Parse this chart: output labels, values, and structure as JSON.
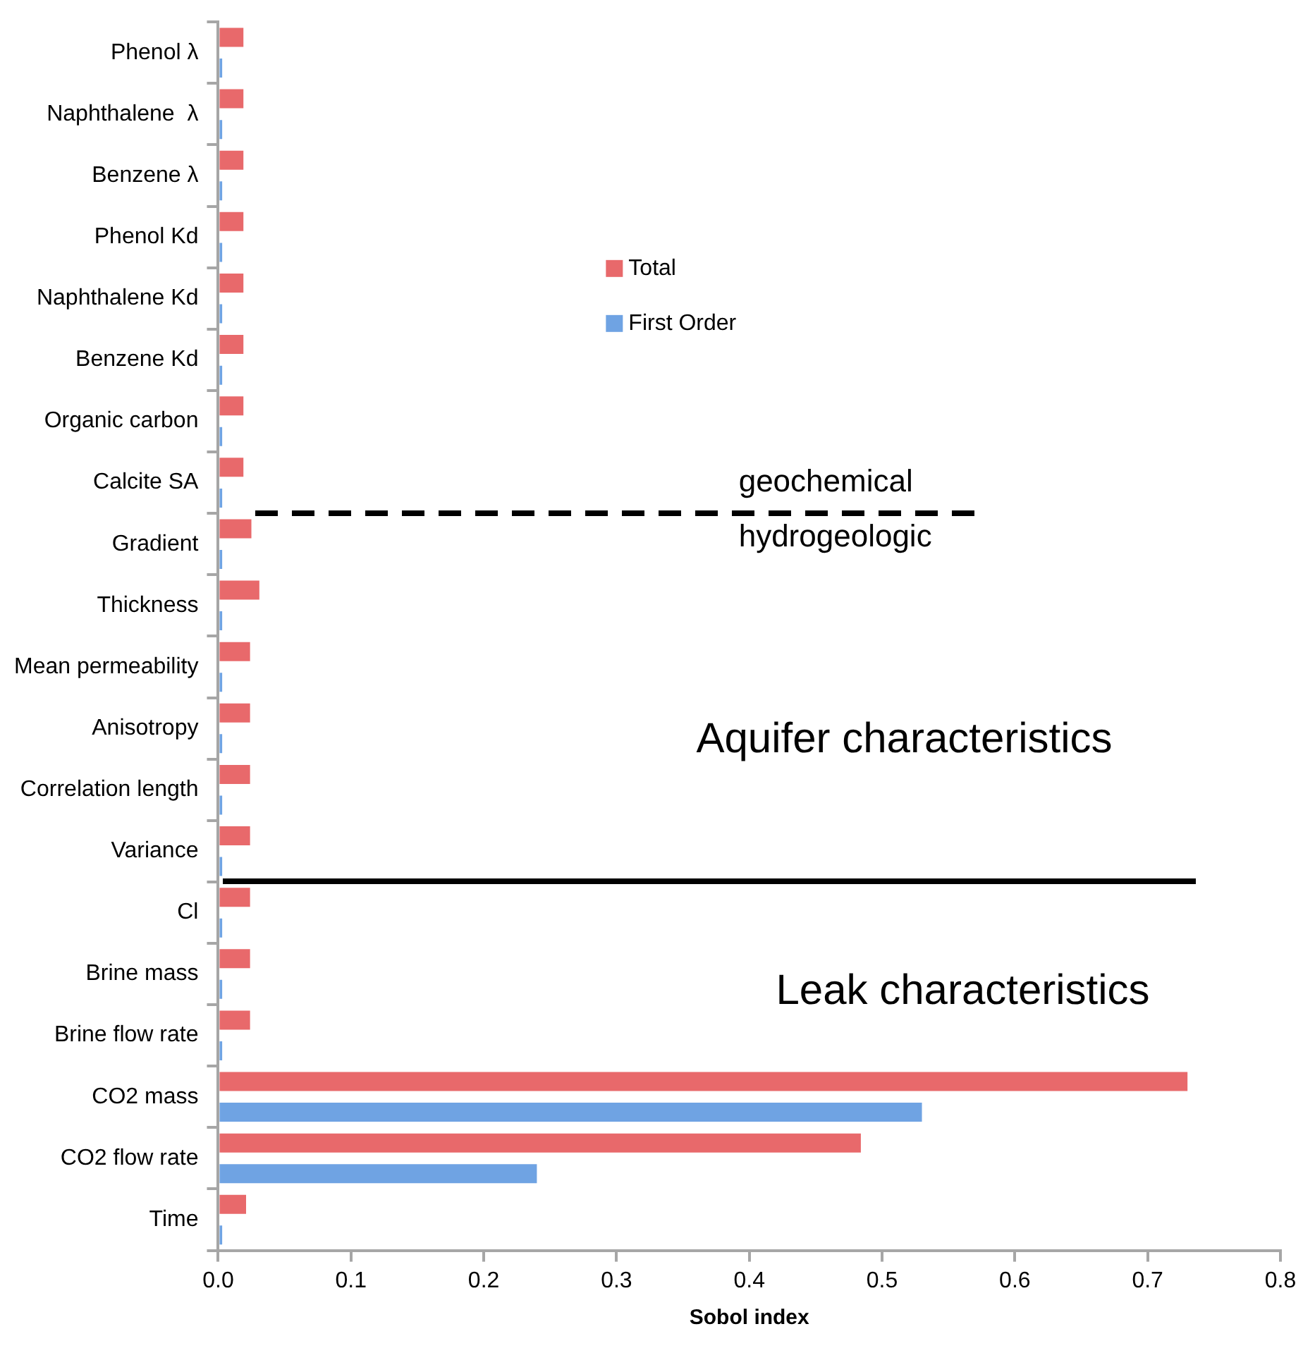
{
  "chart_data": {
    "type": "bar",
    "orientation": "horizontal",
    "xlabel": "Sobol index",
    "categories": [
      "Phenol λ",
      "Naphthalene  λ",
      "Benzene λ",
      "Phenol Kd",
      "Naphthalene Kd",
      "Benzene Kd",
      "Organic carbon",
      "Calcite SA",
      "Gradient",
      "Thickness",
      "Mean permeability",
      "Anisotropy",
      "Correlation length",
      "Variance",
      "Cl",
      "Brine mass",
      "Brine flow rate",
      "CO2 mass",
      "CO2 flow rate",
      "Time"
    ],
    "series": [
      {
        "name": "Total",
        "color": "#e8696b",
        "values": [
          0.019,
          0.019,
          0.019,
          0.019,
          0.019,
          0.019,
          0.019,
          0.019,
          0.025,
          0.031,
          0.024,
          0.024,
          0.024,
          0.024,
          0.024,
          0.024,
          0.024,
          0.73,
          0.484,
          0.021
        ]
      },
      {
        "name": "First Order",
        "color": "#6fa3e3",
        "values": [
          0.003,
          0.003,
          0.003,
          0.003,
          0.003,
          0.003,
          0.003,
          0.003,
          0.003,
          0.003,
          0.003,
          0.003,
          0.003,
          0.003,
          0.003,
          0.003,
          0.003,
          0.53,
          0.24,
          0.003
        ]
      }
    ],
    "xlim": [
      0,
      0.8
    ],
    "xticks": [
      {
        "value": 0,
        "label": "0.0"
      },
      0.1,
      0.2,
      0.3,
      0.4,
      0.5,
      0.6,
      0.7,
      0.8
    ],
    "annotations": [
      "geochemical",
      "hydrogeologic",
      "Aquifer characteristics",
      "Leak characteristics"
    ],
    "legend": "top",
    "grid": false
  }
}
